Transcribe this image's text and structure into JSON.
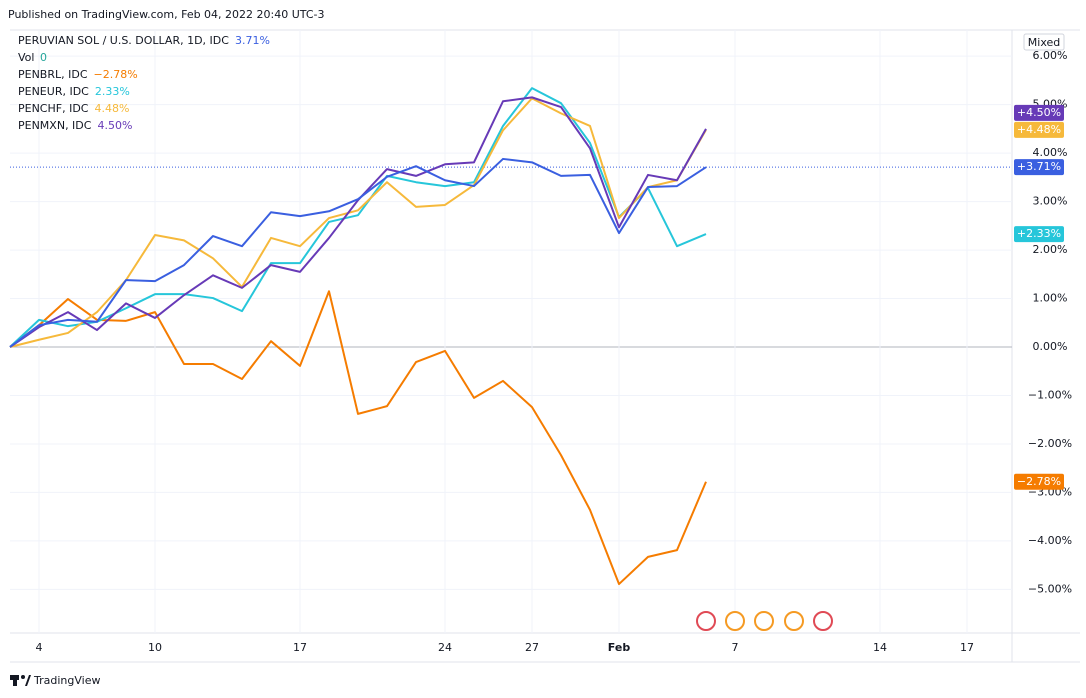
{
  "header": {
    "published": "Published on TradingView.com, Feb 04, 2022 20:40 UTC-3"
  },
  "toolbar": {
    "scale_mode": "Mixed"
  },
  "volume": {
    "label": "Vol",
    "value": 0
  },
  "footer": {
    "brand": "TradingView"
  },
  "chart_data": {
    "type": "line",
    "x": [
      3,
      4,
      5,
      6,
      7,
      10,
      11,
      12,
      13,
      14,
      17,
      18,
      19,
      20,
      21,
      24,
      25,
      26,
      27,
      28,
      31,
      32,
      33,
      34,
      35
    ],
    "xlim": [
      3,
      49
    ],
    "xticks": [
      4,
      10,
      17,
      24,
      27,
      {
        "value": 32,
        "label": "Feb"
      },
      {
        "value": 38,
        "label": "7"
      },
      {
        "value": 45,
        "label": "14"
      },
      {
        "value": 48,
        "label": "17"
      }
    ],
    "ylim": [
      -5.9,
      6.54
    ],
    "yticks": [
      {
        "value": 6,
        "label": "6.00%"
      },
      {
        "value": 5,
        "label": "5.00%"
      },
      {
        "value": 4,
        "label": "4.00%"
      },
      {
        "value": 3,
        "label": "3.00%"
      },
      {
        "value": 2,
        "label": "2.00%"
      },
      {
        "value": 1,
        "label": "1.00%"
      },
      {
        "value": 0,
        "label": "0.00%"
      },
      {
        "value": -1,
        "label": "−1.00%"
      },
      {
        "value": -2,
        "label": "−2.00%"
      },
      {
        "value": -3,
        "label": "−3.00%"
      },
      {
        "value": -4,
        "label": "−4.00%"
      },
      {
        "value": -5,
        "label": "−5.00%"
      }
    ],
    "grid": true,
    "series": [
      {
        "name": "PERUVIAN SOL / U.S. DOLLAR, 1D, IDC",
        "color": "#3a5fe0",
        "legend_value": "3.71%",
        "axis_tag": "+3.71%",
        "values": [
          0,
          0.45,
          0.56,
          0.52,
          1.38,
          1.36,
          1.69,
          2.29,
          2.08,
          2.78,
          2.7,
          2.8,
          3.05,
          3.51,
          3.73,
          3.44,
          3.32,
          3.88,
          3.81,
          3.53,
          3.55,
          2.35,
          3.3,
          3.32,
          3.71
        ]
      },
      {
        "name": "PENBRL, IDC",
        "color": "#f57c00",
        "legend_value": "−2.78%",
        "axis_tag": "−2.78%",
        "values": [
          0,
          0.45,
          0.99,
          0.56,
          0.54,
          0.72,
          -0.35,
          -0.35,
          -0.66,
          0.12,
          -0.39,
          1.15,
          -1.38,
          -1.22,
          -0.31,
          -0.08,
          -1.05,
          -0.7,
          -1.24,
          -2.23,
          -3.36,
          -4.89,
          -4.33,
          -4.19,
          -2.78
        ]
      },
      {
        "name": "PENEUR, IDC",
        "color": "#26c6da",
        "legend_value": "2.33%",
        "axis_tag": "+2.33%",
        "values": [
          0,
          0.56,
          0.43,
          0.52,
          0.8,
          1.09,
          1.09,
          1.01,
          0.74,
          1.73,
          1.73,
          2.58,
          2.72,
          3.53,
          3.4,
          3.32,
          3.4,
          4.56,
          5.34,
          5.03,
          4.21,
          2.68,
          3.28,
          2.08,
          2.33
        ]
      },
      {
        "name": "PENCHF, IDC",
        "color": "#f6b93b",
        "legend_value": "4.48%",
        "axis_tag": "+4.48%",
        "values": [
          0,
          0.15,
          0.29,
          0.72,
          1.38,
          2.31,
          2.2,
          1.83,
          1.24,
          2.25,
          2.08,
          2.66,
          2.82,
          3.4,
          2.89,
          2.93,
          3.34,
          4.47,
          5.13,
          4.82,
          4.56,
          2.66,
          3.3,
          3.44,
          4.48
        ]
      },
      {
        "name": "PENMXN, IDC",
        "color": "#673ab7",
        "legend_value": "4.50%",
        "axis_tag": "+4.50%",
        "values": [
          0,
          0.41,
          0.72,
          0.35,
          0.9,
          0.6,
          1.07,
          1.48,
          1.22,
          1.69,
          1.55,
          2.25,
          3.03,
          3.67,
          3.53,
          3.77,
          3.81,
          5.07,
          5.15,
          4.95,
          4.1,
          2.47,
          3.55,
          3.44,
          4.5
        ]
      }
    ]
  }
}
